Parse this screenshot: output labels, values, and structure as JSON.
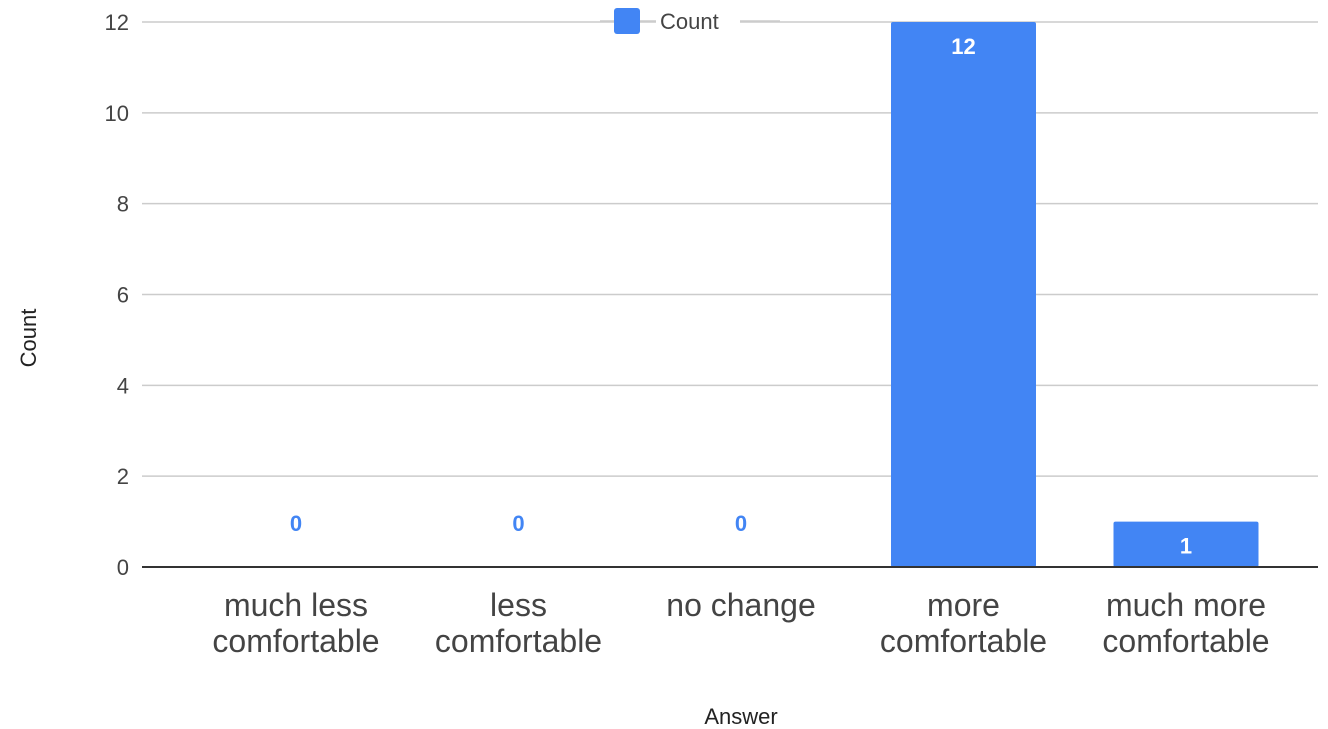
{
  "chart_data": {
    "type": "bar",
    "categories": [
      [
        "much less",
        "comfortable"
      ],
      [
        "less",
        "comfortable"
      ],
      [
        "no change"
      ],
      [
        "more",
        "comfortable"
      ],
      [
        "much more",
        "comfortable"
      ]
    ],
    "series": [
      {
        "name": "Count",
        "values": [
          0,
          0,
          0,
          12,
          1
        ],
        "color": "#4285f4"
      }
    ],
    "xlabel": "Answer",
    "ylabel": "Count",
    "ylim": [
      0,
      12
    ],
    "yticks": [
      0,
      2,
      4,
      6,
      8,
      10,
      12
    ],
    "grid": true,
    "legend": {
      "position": "top-center"
    },
    "data_labels": [
      "0",
      "0",
      "0",
      "12",
      "1"
    ]
  }
}
